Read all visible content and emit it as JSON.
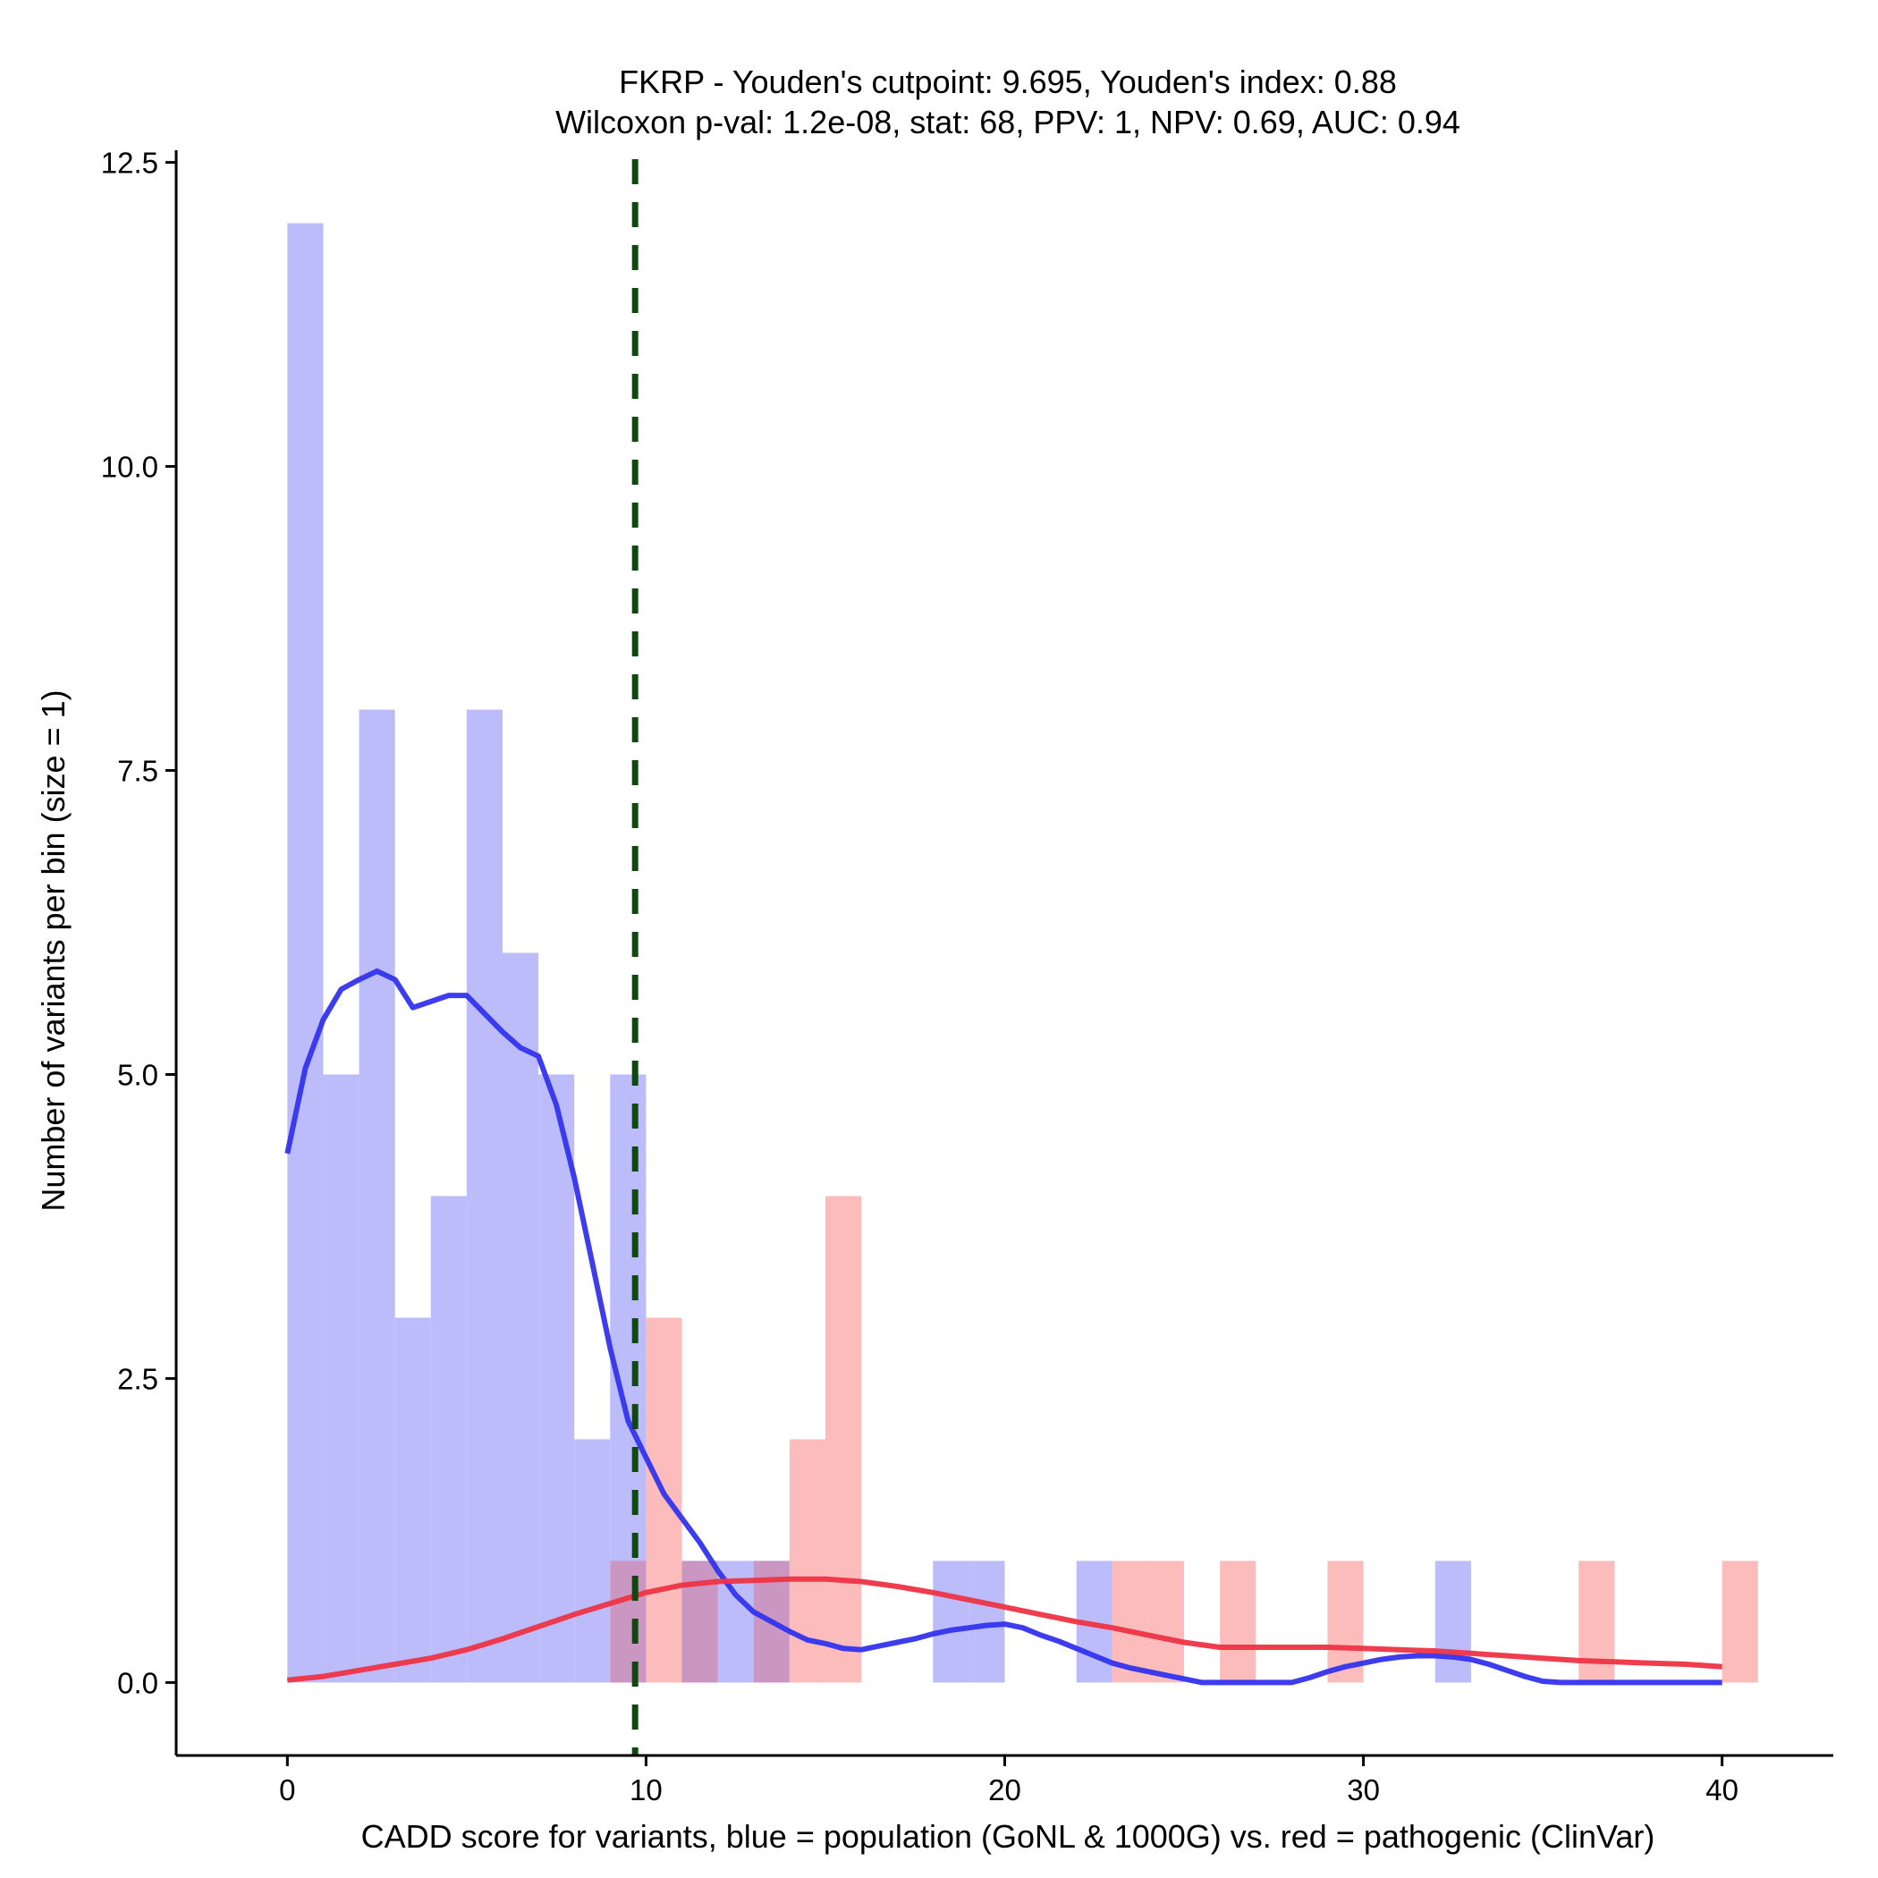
{
  "chart_data": {
    "type": "histogram",
    "title_line1": "FKRP - Youden's cutpoint: 9.695, Youden's index: 0.88",
    "title_line2": "Wilcoxon p-val: 1.2e-08, stat: 68, PPV: 1, NPV: 0.69, AUC: 0.94",
    "xlabel": "CADD score for variants, blue = population (GoNL & 1000G) vs. red = pathogenic (ClinVar)",
    "ylabel": "Number of variants per bin (size = 1)",
    "xlim": [
      -3.1,
      43.1
    ],
    "ylim": [
      -0.6,
      12.6
    ],
    "x_ticks": [
      0,
      10,
      20,
      30,
      40
    ],
    "x_tick_labels": [
      "0",
      "10",
      "20",
      "30",
      "40"
    ],
    "y_ticks": [
      0,
      2.5,
      5,
      7.5,
      10,
      12.5
    ],
    "y_tick_labels": [
      "0.0",
      "2.5",
      "5.0",
      "7.5",
      "10.0",
      "12.5"
    ],
    "cutpoint": 9.695,
    "bin_width": 1,
    "colors": {
      "population_bar": "#bcbcfb",
      "pathogenic_bar": "#fcbcbc",
      "overlap_bar": "#c997c2",
      "population_line": "#3333ee",
      "pathogenic_line": "#ee3344",
      "cutpoint_line": "#0e4a0e"
    },
    "series": [
      {
        "name": "population (GoNL & 1000G)",
        "bins": [
          {
            "x": 0,
            "count": 12
          },
          {
            "x": 1,
            "count": 5
          },
          {
            "x": 2,
            "count": 8
          },
          {
            "x": 3,
            "count": 3
          },
          {
            "x": 4,
            "count": 4
          },
          {
            "x": 5,
            "count": 8
          },
          {
            "x": 6,
            "count": 6
          },
          {
            "x": 7,
            "count": 5
          },
          {
            "x": 8,
            "count": 2
          },
          {
            "x": 9,
            "count": 5
          },
          {
            "x": 11,
            "count": 1
          },
          {
            "x": 12,
            "count": 1
          },
          {
            "x": 13,
            "count": 1
          },
          {
            "x": 18,
            "count": 1
          },
          {
            "x": 19,
            "count": 1
          },
          {
            "x": 22,
            "count": 1
          },
          {
            "x": 32,
            "count": 1
          }
        ],
        "density": [
          [
            0,
            4.35
          ],
          [
            0.5,
            5.05
          ],
          [
            1,
            5.45
          ],
          [
            1.5,
            5.7
          ],
          [
            2,
            5.78
          ],
          [
            2.5,
            5.85
          ],
          [
            3,
            5.78
          ],
          [
            3.5,
            5.55
          ],
          [
            4,
            5.6
          ],
          [
            4.5,
            5.65
          ],
          [
            5,
            5.65
          ],
          [
            5.5,
            5.5
          ],
          [
            6,
            5.35
          ],
          [
            6.5,
            5.22
          ],
          [
            7,
            5.15
          ],
          [
            7.5,
            4.75
          ],
          [
            8,
            4.15
          ],
          [
            8.5,
            3.45
          ],
          [
            9,
            2.75
          ],
          [
            9.5,
            2.15
          ],
          [
            10,
            1.85
          ],
          [
            10.5,
            1.55
          ],
          [
            11,
            1.35
          ],
          [
            11.5,
            1.15
          ],
          [
            12,
            0.92
          ],
          [
            12.5,
            0.72
          ],
          [
            13,
            0.58
          ],
          [
            13.5,
            0.5
          ],
          [
            14,
            0.42
          ],
          [
            14.5,
            0.35
          ],
          [
            15,
            0.32
          ],
          [
            15.5,
            0.28
          ],
          [
            16,
            0.27
          ],
          [
            16.5,
            0.3
          ],
          [
            17,
            0.33
          ],
          [
            17.5,
            0.36
          ],
          [
            18,
            0.4
          ],
          [
            18.5,
            0.43
          ],
          [
            19,
            0.45
          ],
          [
            19.5,
            0.47
          ],
          [
            20,
            0.48
          ],
          [
            20.5,
            0.45
          ],
          [
            21,
            0.39
          ],
          [
            21.5,
            0.34
          ],
          [
            22,
            0.28
          ],
          [
            22.5,
            0.22
          ],
          [
            23,
            0.16
          ],
          [
            23.5,
            0.12
          ],
          [
            24,
            0.09
          ],
          [
            24.5,
            0.06
          ],
          [
            25,
            0.03
          ],
          [
            25.5,
            0.0
          ],
          [
            28,
            0.0
          ],
          [
            28.5,
            0.04
          ],
          [
            29,
            0.09
          ],
          [
            29.5,
            0.13
          ],
          [
            30,
            0.16
          ],
          [
            30.5,
            0.19
          ],
          [
            31,
            0.21
          ],
          [
            31.5,
            0.22
          ],
          [
            32,
            0.22
          ],
          [
            32.5,
            0.21
          ],
          [
            33,
            0.19
          ],
          [
            33.5,
            0.15
          ],
          [
            34,
            0.1
          ],
          [
            34.5,
            0.05
          ],
          [
            35,
            0.01
          ],
          [
            35.5,
            0.0
          ],
          [
            40,
            0.0
          ]
        ]
      },
      {
        "name": "pathogenic (ClinVar)",
        "bins": [
          {
            "x": 9,
            "count": 1
          },
          {
            "x": 10,
            "count": 3
          },
          {
            "x": 11,
            "count": 1
          },
          {
            "x": 13,
            "count": 1
          },
          {
            "x": 14,
            "count": 2
          },
          {
            "x": 15,
            "count": 4
          },
          {
            "x": 23,
            "count": 1
          },
          {
            "x": 24,
            "count": 1
          },
          {
            "x": 26,
            "count": 1
          },
          {
            "x": 29,
            "count": 1
          },
          {
            "x": 36,
            "count": 1
          },
          {
            "x": 40,
            "count": 1
          }
        ],
        "density": [
          [
            0,
            0.02
          ],
          [
            1,
            0.05
          ],
          [
            2,
            0.1
          ],
          [
            3,
            0.15
          ],
          [
            4,
            0.2
          ],
          [
            5,
            0.27
          ],
          [
            6,
            0.36
          ],
          [
            7,
            0.46
          ],
          [
            8,
            0.56
          ],
          [
            9,
            0.65
          ],
          [
            10,
            0.74
          ],
          [
            11,
            0.8
          ],
          [
            12,
            0.83
          ],
          [
            13,
            0.84
          ],
          [
            14,
            0.85
          ],
          [
            15,
            0.85
          ],
          [
            16,
            0.83
          ],
          [
            17,
            0.79
          ],
          [
            18,
            0.74
          ],
          [
            19,
            0.68
          ],
          [
            20,
            0.62
          ],
          [
            21,
            0.56
          ],
          [
            22,
            0.5
          ],
          [
            23,
            0.45
          ],
          [
            24,
            0.39
          ],
          [
            25,
            0.33
          ],
          [
            26,
            0.29
          ],
          [
            27,
            0.29
          ],
          [
            28,
            0.29
          ],
          [
            29,
            0.29
          ],
          [
            30,
            0.28
          ],
          [
            31,
            0.27
          ],
          [
            32,
            0.26
          ],
          [
            33,
            0.24
          ],
          [
            34,
            0.22
          ],
          [
            35,
            0.2
          ],
          [
            36,
            0.18
          ],
          [
            37,
            0.17
          ],
          [
            38,
            0.16
          ],
          [
            39,
            0.15
          ],
          [
            40,
            0.13
          ]
        ]
      }
    ]
  }
}
